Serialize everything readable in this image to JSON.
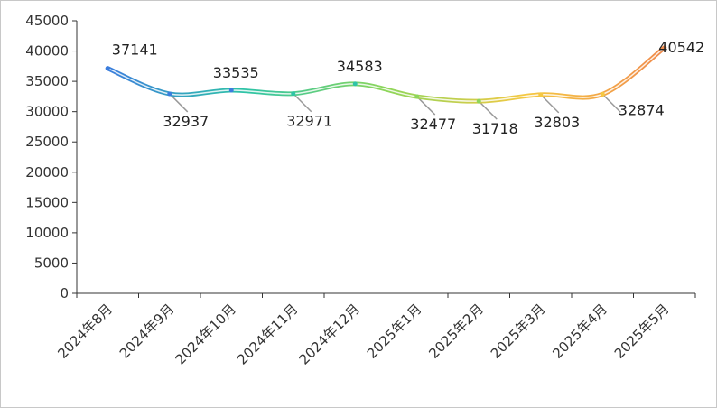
{
  "chart_data": {
    "type": "line",
    "title": "",
    "xlabel": "",
    "ylabel": "",
    "categories": [
      "2024年8月",
      "2024年9月",
      "2024年10月",
      "2024年11月",
      "2024年12月",
      "2025年1月",
      "2025年2月",
      "2025年3月",
      "2025年4月",
      "2025年5月"
    ],
    "series": [
      {
        "values": [
          37141,
          32937,
          33535,
          32971,
          34583,
          32477,
          31718,
          32803,
          32874,
          40542
        ]
      }
    ],
    "ylim": [
      0,
      45000
    ],
    "yticks": [
      0,
      5000,
      10000,
      15000,
      20000,
      25000,
      30000,
      35000,
      40000,
      45000
    ],
    "grid": false,
    "smooth": true,
    "gradient_colors": [
      "#3b7ddd",
      "#2ec4a6",
      "#8dd65a",
      "#f5c842",
      "#f08a4b"
    ],
    "data_labels": true
  }
}
